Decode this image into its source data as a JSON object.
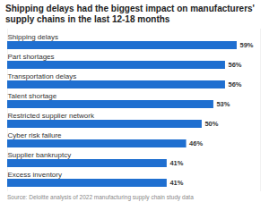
{
  "chart_data": {
    "type": "bar",
    "orientation": "horizontal",
    "title": "Shipping delays had the biggest impact on manufacturers' supply chains in the last 12-18 months",
    "caption": "Source: Deloitte analysis of 2022 manufacturing supply chain study data",
    "categories": [
      "Shipping delays",
      "Part shortages",
      "Transportation delays",
      "Talent shortage",
      "Restricted supplier network",
      "Cyber risk failure",
      "Supplier bankruptcy",
      "Excess inventory"
    ],
    "values": [
      59,
      56,
      56,
      53,
      50,
      46,
      41,
      41
    ],
    "value_labels": [
      "59%",
      "56%",
      "56%",
      "53%",
      "50%",
      "46%",
      "41%",
      "41%"
    ],
    "color": "#1f6fd0",
    "xlim": [
      0,
      65
    ],
    "grid": false,
    "data_labels": true
  }
}
